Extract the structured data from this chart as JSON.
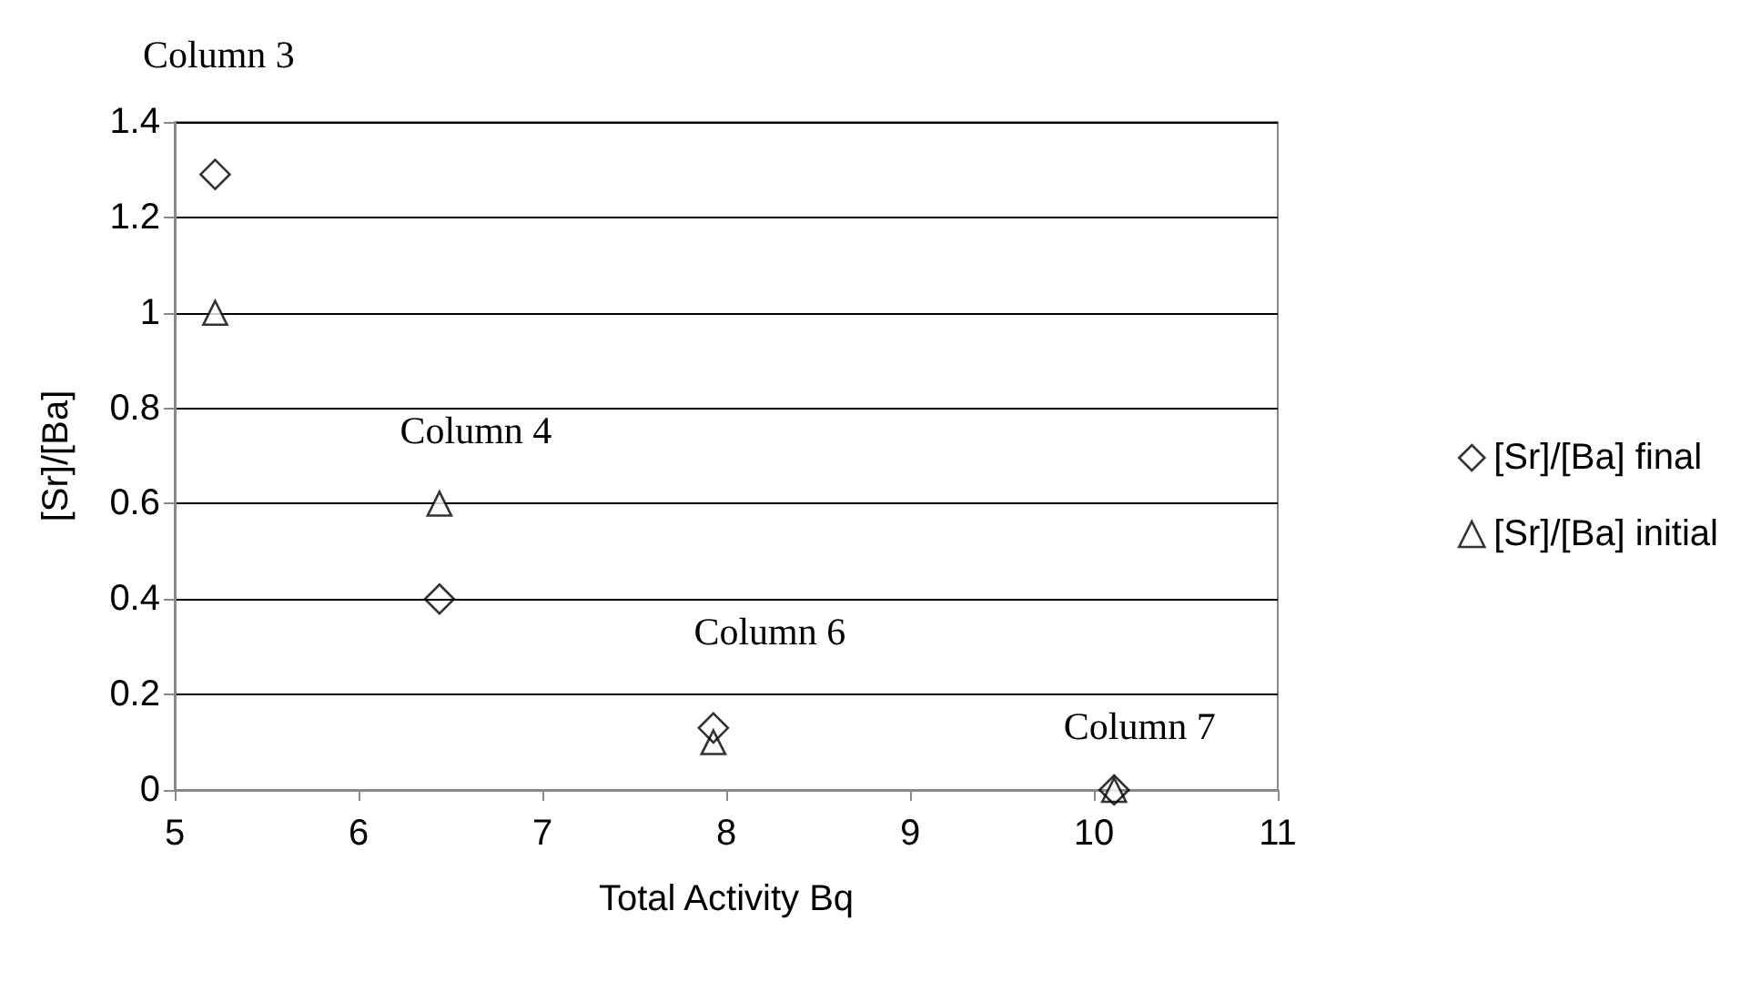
{
  "chart_data": {
    "type": "scatter",
    "xlabel": "Total Activity Bq",
    "ylabel": "[Sr]/[Ba]",
    "series": [
      {
        "name": "[Sr]/[Ba] final",
        "color": "#000000",
        "marker": "diamond",
        "x": [
          5.22,
          6.44,
          7.93,
          10.11
        ],
        "values": [
          1.29,
          0.4,
          0.13,
          0
        ]
      },
      {
        "name": "[Sr]/[Ba] initial",
        "color": "#000000",
        "marker": "triangle",
        "x": [
          5.22,
          6.44,
          7.93,
          10.11
        ],
        "values": [
          1,
          0.6,
          0.1,
          0
        ]
      }
    ],
    "annotations": [
      {
        "text": "Column 3",
        "x": 5.22,
        "y": 1.29
      },
      {
        "text": "Column 4",
        "x": 6.44,
        "y": 0.6
      },
      {
        "text": "Column 6",
        "x": 7.93,
        "y": 0.13
      },
      {
        "text": "Column 7",
        "x": 10.11,
        "y": 0
      }
    ],
    "xlim": [
      5,
      11
    ],
    "xticks": [
      5,
      6,
      7,
      8,
      9,
      10,
      11
    ],
    "ylim": [
      0,
      1.4
    ],
    "yticks": [
      0,
      0.2,
      0.4,
      0.6,
      0.8,
      1,
      1.2,
      1.4
    ],
    "grid": "y",
    "legend": "right"
  }
}
